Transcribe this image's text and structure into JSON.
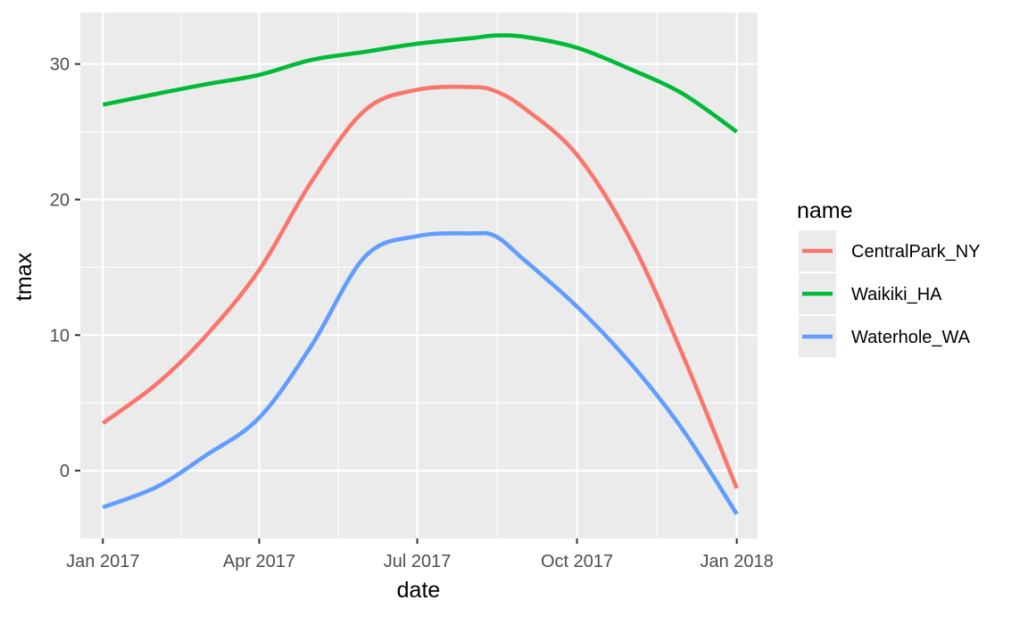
{
  "chart_data": {
    "type": "line",
    "xlabel": "date",
    "ylabel": "tmax",
    "x_ticks": [
      "Jan 2017",
      "Apr 2017",
      "Jul 2017",
      "Oct 2017",
      "Jan 2018"
    ],
    "y_ticks": [
      0,
      10,
      20,
      30
    ],
    "xlim": [
      "2016-12-19",
      "2018-01-13"
    ],
    "ylim": [
      -5,
      33.8
    ],
    "grid": true,
    "background": "#EBEBEB",
    "legend": {
      "title": "name",
      "position": "right"
    },
    "x": [
      "2017-01-01",
      "2017-02-01",
      "2017-03-01",
      "2017-04-01",
      "2017-05-01",
      "2017-06-01",
      "2017-07-01",
      "2017-08-01",
      "2017-08-15",
      "2017-09-01",
      "2017-10-01",
      "2017-11-01",
      "2017-12-01",
      "2018-01-01"
    ],
    "series": [
      {
        "name": "CentralPark_NY",
        "color": "#F8766D",
        "values": [
          3.5,
          6.4,
          9.9,
          14.8,
          21.3,
          26.6,
          28.1,
          28.3,
          28.0,
          26.7,
          23.3,
          17.0,
          8.5,
          -1.3
        ]
      },
      {
        "name": "Waikiki_HA",
        "color": "#00BA38",
        "values": [
          27.0,
          27.8,
          28.5,
          29.2,
          30.3,
          30.9,
          31.5,
          31.9,
          32.1,
          32.0,
          31.2,
          29.6,
          27.8,
          25.0
        ]
      },
      {
        "name": "Waterhole_WA",
        "color": "#619CFF",
        "values": [
          -2.7,
          -1.2,
          1.1,
          3.9,
          9.2,
          15.8,
          17.3,
          17.5,
          17.3,
          15.5,
          12.1,
          7.9,
          3.0,
          -3.2
        ]
      }
    ]
  }
}
